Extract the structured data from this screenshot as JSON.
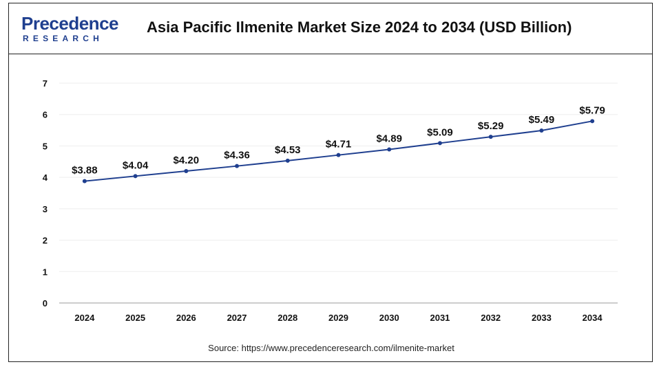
{
  "header": {
    "logo_word": "Precedence",
    "logo_sub": "RESEARCH",
    "title": "Asia Pacific Ilmenite Market Size 2024 to 2034 (USD Billion)"
  },
  "footer": {
    "source": "Source: https://www.precedenceresearch.com/ilmenite-market"
  },
  "colors": {
    "line": "#1f3f8f",
    "brand": "#1f3f8f",
    "grid": "#eeeeee",
    "axis": "#999999"
  },
  "chart_data": {
    "type": "line",
    "title": "Asia Pacific Ilmenite Market Size 2024 to 2034 (USD Billion)",
    "xlabel": "",
    "ylabel": "",
    "x": [
      "2024",
      "2025",
      "2026",
      "2027",
      "2028",
      "2029",
      "2030",
      "2031",
      "2032",
      "2033",
      "2034"
    ],
    "series": [
      {
        "values": [
          3.88,
          4.04,
          4.2,
          4.36,
          4.53,
          4.71,
          4.89,
          5.09,
          5.29,
          5.49,
          5.79
        ],
        "labels": [
          "$3.88",
          "$4.04",
          "$4.20",
          "$4.36",
          "$4.53",
          "$4.71",
          "$4.89",
          "$5.09",
          "$5.29",
          "$5.49",
          "$5.79"
        ]
      }
    ],
    "ylim": [
      0,
      7
    ],
    "yticks": [
      0,
      1,
      2,
      3,
      4,
      5,
      6,
      7
    ],
    "grid": true,
    "legend": "none"
  }
}
